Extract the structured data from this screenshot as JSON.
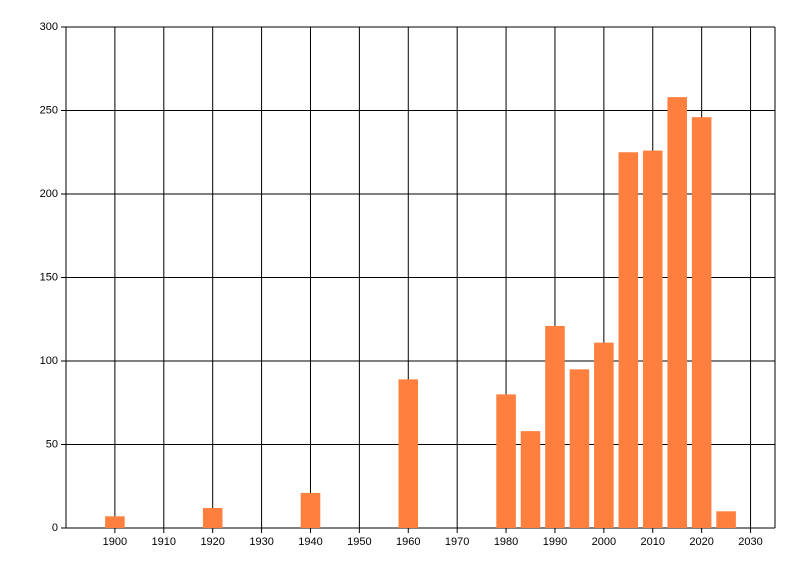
{
  "chart_data": {
    "type": "bar",
    "x": [
      1900,
      1920,
      1940,
      1960,
      1980,
      1985,
      1990,
      1995,
      2000,
      2005,
      2010,
      2015,
      2020,
      2025
    ],
    "values": [
      7,
      12,
      21,
      89,
      80,
      58,
      121,
      95,
      111,
      225,
      226,
      258,
      246,
      10
    ],
    "color": "#ff7f3f",
    "xlim": [
      1890,
      2035
    ],
    "xticks": [
      1900,
      1910,
      1920,
      1930,
      1940,
      1950,
      1960,
      1970,
      1980,
      1990,
      2000,
      2010,
      2020,
      2030
    ],
    "ylim": [
      0,
      300
    ],
    "yticks": [
      0,
      50,
      100,
      150,
      200,
      250,
      300
    ],
    "grid": true
  }
}
